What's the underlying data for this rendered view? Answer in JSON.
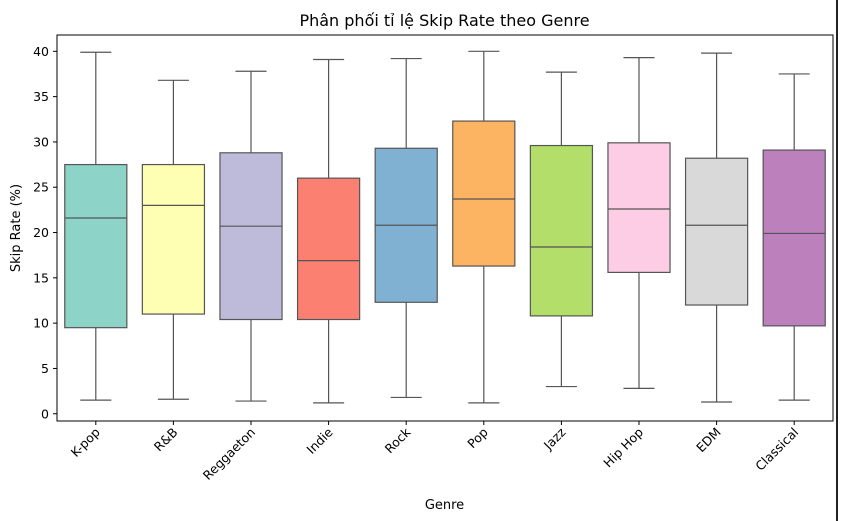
{
  "chart_data": {
    "type": "boxplot",
    "title": "Phân phối tỉ lệ Skip Rate theo Genre",
    "xlabel": "Genre",
    "ylabel": "Skip Rate (%)",
    "ylim": [
      -0.8,
      41.8
    ],
    "yticks": [
      0,
      5,
      10,
      15,
      20,
      25,
      30,
      35,
      40
    ],
    "grid": false,
    "legend": "none",
    "categories": [
      "K-pop",
      "R&B",
      "Reggaeton",
      "Indie",
      "Rock",
      "Pop",
      "Jazz",
      "Hip Hop",
      "EDM",
      "Classical"
    ],
    "boxes": [
      {
        "min": 1.5,
        "q1": 9.5,
        "median": 21.6,
        "q3": 27.5,
        "max": 39.9,
        "color": "#8dd3c7"
      },
      {
        "min": 1.6,
        "q1": 11.0,
        "median": 23.0,
        "q3": 27.5,
        "max": 36.8,
        "color": "#ffffb3"
      },
      {
        "min": 1.4,
        "q1": 10.4,
        "median": 20.7,
        "q3": 28.8,
        "max": 37.8,
        "color": "#bebada"
      },
      {
        "min": 1.2,
        "q1": 10.4,
        "median": 16.9,
        "q3": 26.0,
        "max": 39.1,
        "color": "#fb8072"
      },
      {
        "min": 1.8,
        "q1": 12.3,
        "median": 20.8,
        "q3": 29.3,
        "max": 39.2,
        "color": "#80b1d3"
      },
      {
        "min": 1.2,
        "q1": 16.3,
        "median": 23.7,
        "q3": 32.3,
        "max": 40.0,
        "color": "#fdb462"
      },
      {
        "min": 3.0,
        "q1": 10.8,
        "median": 18.4,
        "q3": 29.6,
        "max": 37.7,
        "color": "#b3de69"
      },
      {
        "min": 2.8,
        "q1": 15.6,
        "median": 22.6,
        "q3": 29.9,
        "max": 39.3,
        "color": "#fccde5"
      },
      {
        "min": 1.3,
        "q1": 12.0,
        "median": 20.8,
        "q3": 28.2,
        "max": 39.8,
        "color": "#d9d9d9"
      },
      {
        "min": 1.5,
        "q1": 9.7,
        "median": 19.9,
        "q3": 29.1,
        "max": 37.5,
        "color": "#bc80bd"
      }
    ],
    "line_color": "#555555"
  }
}
